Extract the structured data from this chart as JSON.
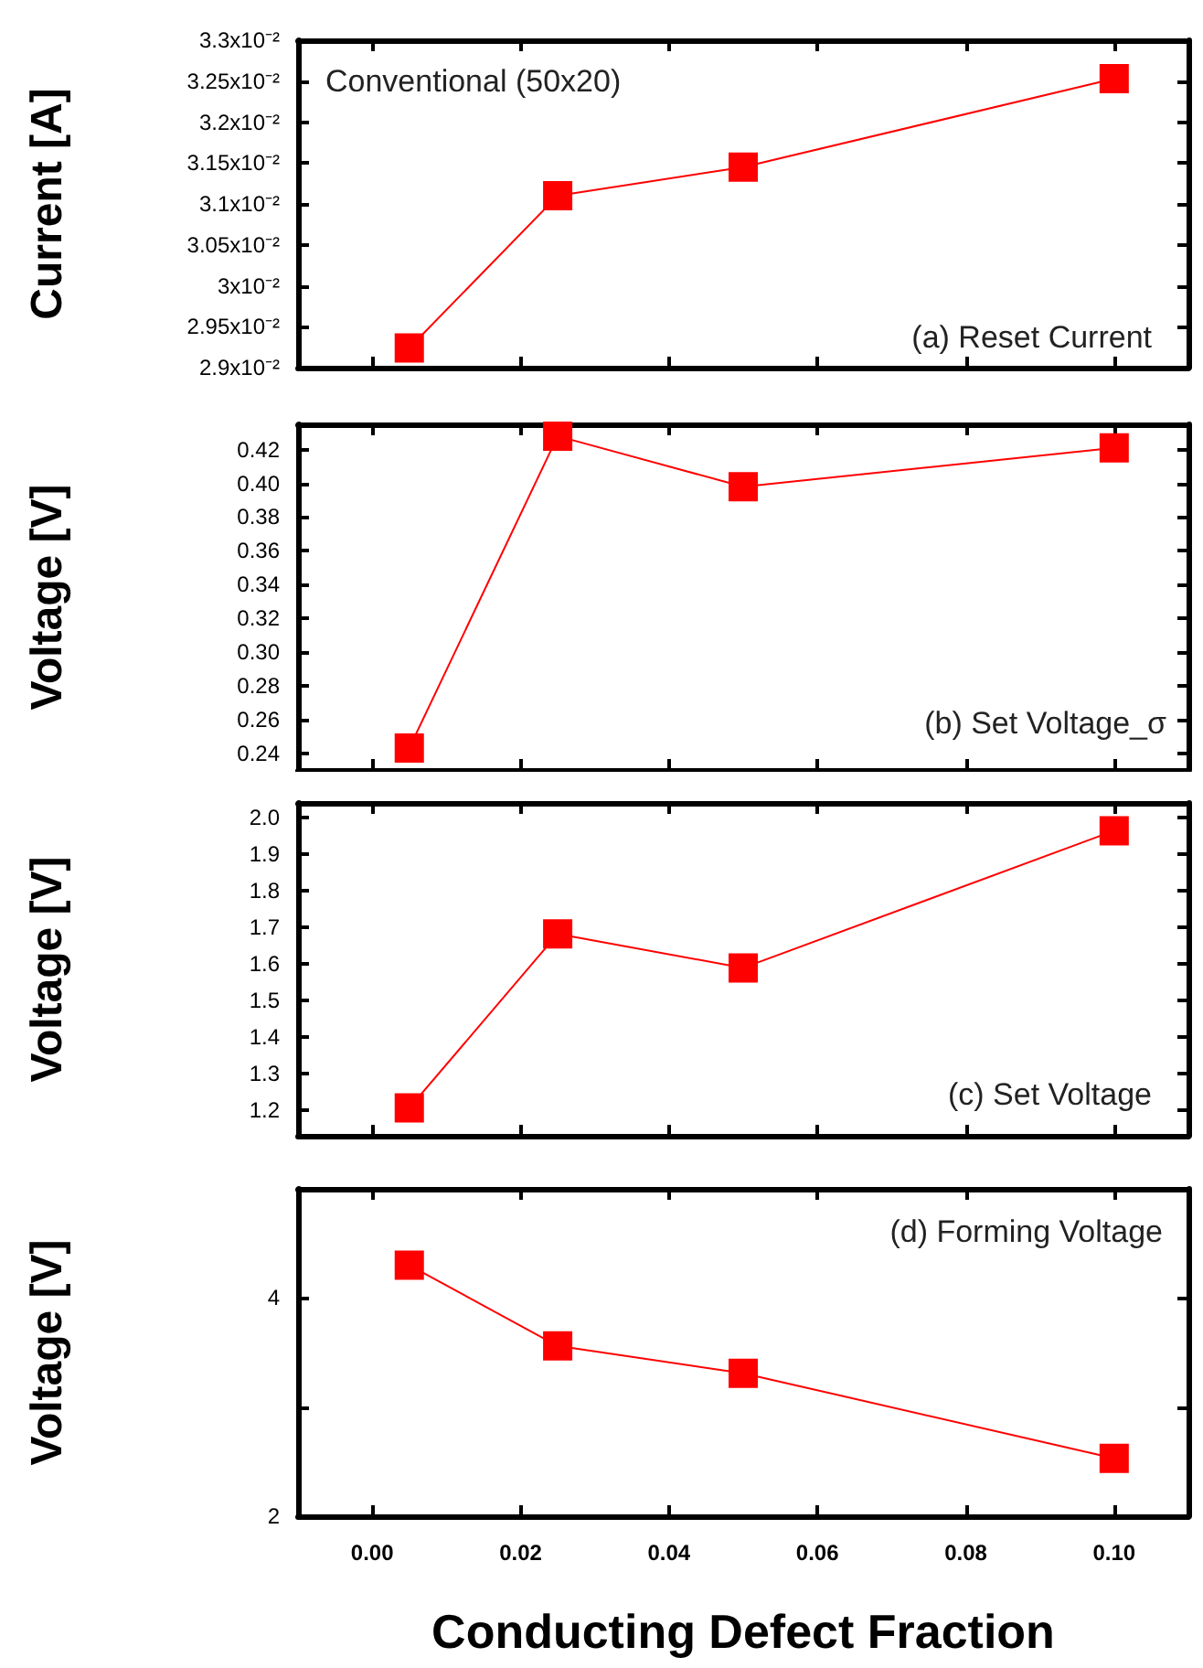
{
  "chart_data": [
    {
      "type": "line",
      "ylabel": "Current [A]",
      "annotations": [
        "Conventional (50x20)",
        "(a) Reset Current"
      ],
      "x": [
        0.005,
        0.025,
        0.05,
        0.1
      ],
      "series": [
        {
          "color": "#ff0000",
          "values": [
            0.02924,
            0.0311,
            0.03145,
            0.03253
          ]
        }
      ],
      "xlim": [
        -0.01,
        0.11
      ],
      "ylim": [
        0.029,
        0.033
      ],
      "yticks": [
        {
          "value": 0.029,
          "label": "2.9x10⁻²"
        },
        {
          "value": 0.0295,
          "label": "2.95x10⁻²"
        },
        {
          "value": 0.03,
          "label": "3x10⁻²"
        },
        {
          "value": 0.0305,
          "label": "3.05x10⁻²"
        },
        {
          "value": 0.031,
          "label": "3.1x10⁻²"
        },
        {
          "value": 0.0315,
          "label": "3.15x10⁻²"
        },
        {
          "value": 0.032,
          "label": "3.2x10⁻²"
        },
        {
          "value": 0.0325,
          "label": "3.25x10⁻²"
        },
        {
          "value": 0.033,
          "label": "3.3x10⁻²"
        }
      ],
      "xticks": [
        0,
        0.02,
        0.04,
        0.06,
        0.08,
        0.1
      ],
      "tick_labels": "y",
      "marker": "square",
      "grid": false
    },
    {
      "type": "line",
      "ylabel": "Voltage [V]",
      "annotations": [
        "(b) Set Voltage_σ"
      ],
      "x": [
        0.005,
        0.025,
        0.05,
        0.1
      ],
      "series": [
        {
          "color": "#ff0000",
          "values": [
            0.243,
            0.428,
            0.398,
            0.421
          ]
        }
      ],
      "xlim": [
        -0.01,
        0.11
      ],
      "ylim": [
        0.23,
        0.435
      ],
      "yticks": [
        {
          "value": 0.24,
          "label": "0.24"
        },
        {
          "value": 0.26,
          "label": "0.26"
        },
        {
          "value": 0.28,
          "label": "0.28"
        },
        {
          "value": 0.3,
          "label": "0.30"
        },
        {
          "value": 0.32,
          "label": "0.32"
        },
        {
          "value": 0.34,
          "label": "0.34"
        },
        {
          "value": 0.36,
          "label": "0.36"
        },
        {
          "value": 0.38,
          "label": "0.38"
        },
        {
          "value": 0.4,
          "label": "0.40"
        },
        {
          "value": 0.42,
          "label": "0.42"
        }
      ],
      "xticks": [
        0,
        0.02,
        0.04,
        0.06,
        0.08,
        0.1
      ],
      "tick_labels": "y",
      "marker": "square",
      "grid": false
    },
    {
      "type": "line",
      "ylabel": "Voltage [V]",
      "annotations": [
        "(c) Set Voltage"
      ],
      "x": [
        0.005,
        0.025,
        0.05,
        0.1
      ],
      "series": [
        {
          "color": "#ff0000",
          "values": [
            1.206,
            1.682,
            1.589,
            1.964
          ]
        }
      ],
      "xlim": [
        -0.01,
        0.11
      ],
      "ylim": [
        1.13,
        2.04
      ],
      "yticks": [
        {
          "value": 1.2,
          "label": "1.2"
        },
        {
          "value": 1.3,
          "label": "1.3"
        },
        {
          "value": 1.4,
          "label": "1.4"
        },
        {
          "value": 1.5,
          "label": "1.5"
        },
        {
          "value": 1.6,
          "label": "1.6"
        },
        {
          "value": 1.7,
          "label": "1.7"
        },
        {
          "value": 1.8,
          "label": "1.8"
        },
        {
          "value": 1.9,
          "label": "1.9"
        },
        {
          "value": 2.0,
          "label": "2.0"
        }
      ],
      "xticks": [
        0,
        0.02,
        0.04,
        0.06,
        0.08,
        0.1
      ],
      "tick_labels": "y",
      "marker": "square",
      "grid": false
    },
    {
      "type": "line",
      "ylabel": "Voltage [V]",
      "xlabel": "Conducting Defect Fraction",
      "annotations": [
        "(d) Forming Voltage"
      ],
      "x": [
        0.005,
        0.025,
        0.05,
        0.1
      ],
      "series": [
        {
          "color": "#ff0000",
          "values": [
            4.3,
            3.56,
            3.31,
            2.53
          ]
        }
      ],
      "xlim": [
        -0.01,
        0.11
      ],
      "ylim": [
        2,
        5
      ],
      "yticks": [
        2,
        {
          "value": 3,
          "label": null
        },
        4
      ],
      "xticks": [
        {
          "value": 0,
          "label": "0.00"
        },
        {
          "value": 0.02,
          "label": "0.02"
        },
        {
          "value": 0.04,
          "label": "0.04"
        },
        {
          "value": 0.06,
          "label": "0.06"
        },
        {
          "value": 0.08,
          "label": "0.08"
        },
        {
          "value": 0.1,
          "label": "0.10"
        }
      ],
      "marker": "square",
      "grid": false
    }
  ]
}
